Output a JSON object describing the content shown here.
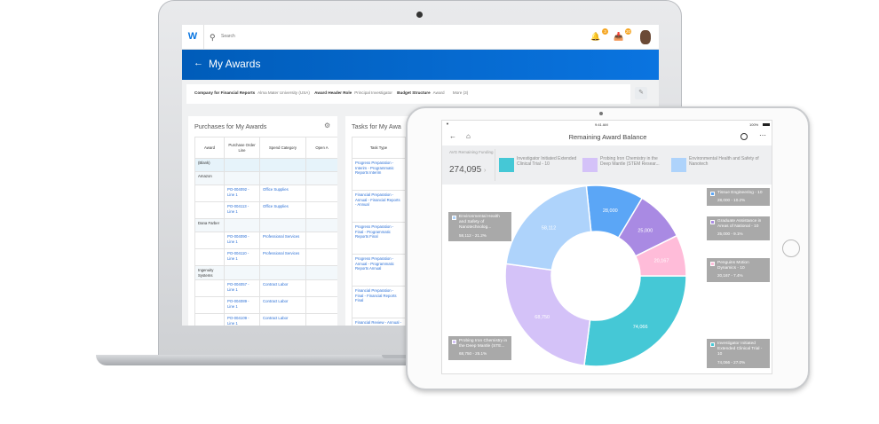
{
  "laptop": {
    "search_placeholder": "Search",
    "logo": "W",
    "notifications": {
      "icon": "bell-icon",
      "badge": "3"
    },
    "inbox": {
      "icon": "inbox-icon",
      "badge": "20"
    },
    "page_title": "My Awards",
    "filters": [
      {
        "label": "Company for Financial Reports",
        "value": "Alma Mater University (USA)"
      },
      {
        "label": "Award Header Role",
        "value": "Principal Investigator"
      },
      {
        "label": "Budget Structure",
        "value": "Award"
      }
    ],
    "more": "More (3)",
    "purchases": {
      "title": "Purchases for My Awards",
      "columns": [
        "Award",
        "Purchase Order Line",
        "Spend Category",
        "Open A"
      ],
      "rows": [
        {
          "award": "(Blank)",
          "po": "",
          "cat": ""
        },
        {
          "award": "Amazon",
          "po": "",
          "cat": ""
        },
        {
          "award": "",
          "po": "PO-004092 - Line 1",
          "cat": "Office Supplies"
        },
        {
          "award": "",
          "po": "PO-004113 - Line 1",
          "cat": "Office Supplies"
        },
        {
          "award": "Dana Farber",
          "po": "",
          "cat": ""
        },
        {
          "award": "",
          "po": "PO-004090 - Line 1",
          "cat": "Professional Services"
        },
        {
          "award": "",
          "po": "PO-004110 - Line 1",
          "cat": "Professional Services"
        },
        {
          "award": "Ingenuity Systems",
          "po": "",
          "cat": ""
        },
        {
          "award": "",
          "po": "PO-004057 - Line 1",
          "cat": "Contract Labor"
        },
        {
          "award": "",
          "po": "PO-004089 - Line 1",
          "cat": "Contract Labor"
        },
        {
          "award": "",
          "po": "PO-004109 - Line 1",
          "cat": "Contract Labor"
        }
      ]
    },
    "tasks": {
      "title": "Tasks for My Awa",
      "column": "Task Type",
      "rows": [
        "Progress Preparation - Interim - Programmatic Reports Interim",
        "Financial Preparation - Annual - Financial Reports - Annual",
        "Progress Preparation - Final - Programmatic Reports Final",
        "Progress Preparation - Annual - Programmatic Reports Annual",
        "Financial Preparation - Final - Financial Reports Final",
        "Financial Review - Annual - Financial"
      ]
    }
  },
  "tablet": {
    "time": "9:41 AM",
    "battery": "100%",
    "title": "Remaining Award Balance",
    "summary_label": "AVG Remaining Funding",
    "summary_value": "274,095",
    "legend": [
      {
        "label": "Investigator Initiated Extended Clinical Trial - 10",
        "color": "#45c8d6"
      },
      {
        "label": "Probing Iron Chemistry in the Deep Mantle (STEM Resear...",
        "color": "#d4c2f8"
      },
      {
        "label": "Environmental Health and Safety of Nanotech",
        "color": "#aed3fb"
      }
    ]
  },
  "chart_data": {
    "type": "pie",
    "title": "Remaining Award Balance",
    "total": 274095,
    "slices": [
      {
        "name": "Tissue Engineering - 10",
        "value": 28000,
        "value_label": "28,000",
        "percent": "10.2%",
        "color": "#5ba6f6"
      },
      {
        "name": "Graduate Assistance in Areas of National - 10",
        "value": 25000,
        "value_label": "25,000",
        "percent": "9.1%",
        "color": "#a98ae3"
      },
      {
        "name": "Penguins Motion Dynamics - 10",
        "value": 20167,
        "value_label": "20,167",
        "percent": "7.4%",
        "color": "#ffbcd9"
      },
      {
        "name": "Investigator Initiated Extended Clinical Trial - 10",
        "value": 74066,
        "value_label": "74,066",
        "percent": "27.0%",
        "color": "#45c8d6"
      },
      {
        "name": "Probing Iron Chemistry in the Deep Mantle (STE...",
        "value": 68750,
        "value_label": "68,750",
        "percent": "25.1%",
        "color": "#d4c2f8"
      },
      {
        "name": "Environmental Health and Safety of Nanotechnolog...",
        "value": 58112,
        "value_label": "58,112",
        "percent": "21.2%",
        "color": "#aed3fb"
      }
    ]
  }
}
